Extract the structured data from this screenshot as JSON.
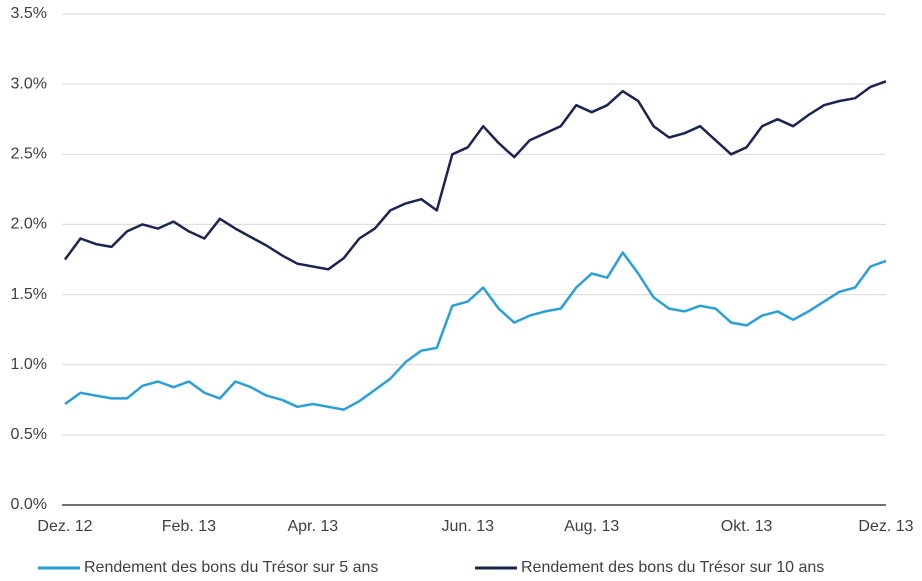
{
  "chart_data": {
    "type": "line",
    "categories": [
      "Dez. 12",
      null,
      null,
      null,
      null,
      null,
      null,
      null,
      "Feb. 13",
      null,
      null,
      null,
      null,
      null,
      null,
      null,
      "Apr. 13",
      null,
      null,
      null,
      null,
      null,
      null,
      null,
      null,
      null,
      "Jun. 13",
      null,
      null,
      null,
      null,
      null,
      null,
      null,
      "Aug. 13",
      null,
      null,
      null,
      null,
      null,
      null,
      null,
      null,
      null,
      "Okt. 13",
      null,
      null,
      null,
      null,
      null,
      null,
      null,
      null,
      "Dez. 13"
    ],
    "series": [
      {
        "name": "Rendement des bons du Trésor sur 5 ans",
        "color": "#2a9fd8",
        "values": [
          0.72,
          0.8,
          0.78,
          0.76,
          0.76,
          0.85,
          0.88,
          0.84,
          0.88,
          0.8,
          0.76,
          0.88,
          0.84,
          0.78,
          0.75,
          0.7,
          0.72,
          0.7,
          0.68,
          0.74,
          0.82,
          0.9,
          1.02,
          1.1,
          1.12,
          1.42,
          1.45,
          1.55,
          1.4,
          1.3,
          1.35,
          1.38,
          1.4,
          1.55,
          1.65,
          1.62,
          1.8,
          1.65,
          1.48,
          1.4,
          1.38,
          1.42,
          1.4,
          1.3,
          1.28,
          1.35,
          1.38,
          1.32,
          1.38,
          1.45,
          1.52,
          1.55,
          1.7,
          1.74
        ]
      },
      {
        "name": "Rendement des bons du Trésor sur 10 ans",
        "color": "#1a2550",
        "values": [
          1.75,
          1.9,
          1.86,
          1.84,
          1.95,
          2.0,
          1.97,
          2.02,
          1.95,
          1.9,
          2.04,
          1.97,
          1.91,
          1.85,
          1.78,
          1.72,
          1.7,
          1.68,
          1.76,
          1.9,
          1.97,
          2.1,
          2.15,
          2.18,
          2.1,
          2.5,
          2.55,
          2.7,
          2.58,
          2.48,
          2.6,
          2.65,
          2.7,
          2.85,
          2.8,
          2.85,
          2.95,
          2.88,
          2.7,
          2.62,
          2.65,
          2.7,
          2.6,
          2.5,
          2.55,
          2.7,
          2.75,
          2.7,
          2.78,
          2.85,
          2.88,
          2.9,
          2.98,
          3.02
        ]
      }
    ],
    "ylim": [
      0,
      3.5
    ],
    "yticks": [
      {
        "value": 0,
        "label": "0.0%"
      },
      {
        "value": 0.5,
        "label": "0.5%"
      },
      {
        "value": 1,
        "label": "1.0%"
      },
      {
        "value": 1.5,
        "label": "1.5%"
      },
      {
        "value": 2,
        "label": "2.0%"
      },
      {
        "value": 2.5,
        "label": "2.5%"
      },
      {
        "value": 3,
        "label": "3.0%"
      },
      {
        "value": 3.5,
        "label": "3.5%"
      }
    ],
    "grid": true,
    "legend": "bottom"
  }
}
